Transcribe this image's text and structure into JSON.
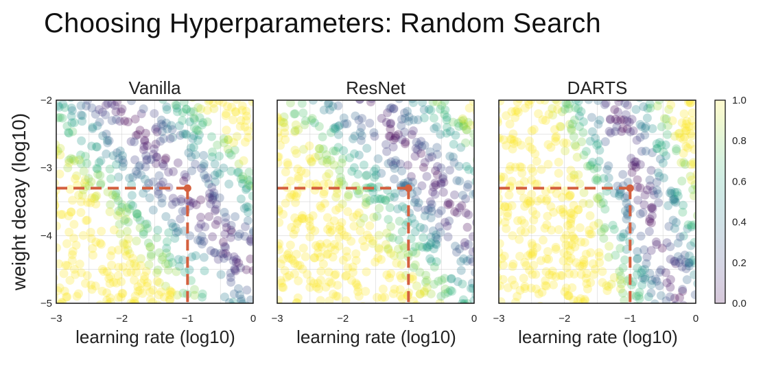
{
  "slide_title": "Choosing Hyperparameters: Random Search",
  "chart_data": [
    {
      "type": "scatter",
      "title": "Vanilla",
      "xlabel": "learning rate (log10)",
      "ylabel": "weight decay (log10)",
      "xlim": [
        -3,
        0
      ],
      "ylim": [
        -5,
        -2
      ],
      "xticks": [
        "−3",
        "−2",
        "−1",
        "0"
      ],
      "yticks": [
        "−2",
        "−3",
        "−4",
        "−5"
      ],
      "highlight_point": {
        "x": -1,
        "y": -3.3
      },
      "low_error_band": {
        "through": [
          [
            -2,
            -2.5
          ],
          [
            -1,
            -3.3
          ],
          [
            -0.2,
            -4.5
          ]
        ]
      },
      "band": {
        "cx": -1,
        "cy": -3.3,
        "a": 1.2,
        "b": 1.0,
        "scale": 0.6
      },
      "n_points": 650
    },
    {
      "type": "scatter",
      "title": "ResNet",
      "xlabel": "learning rate (log10)",
      "ylabel": "",
      "xlim": [
        -3,
        0
      ],
      "ylim": [
        -5,
        -2
      ],
      "xticks": [
        "−3",
        "−2",
        "−1",
        "0"
      ],
      "yticks": [],
      "highlight_point": {
        "x": -1,
        "y": -3.3
      },
      "low_error_band": {
        "through": [
          [
            -1.5,
            -2
          ],
          [
            -0.6,
            -3.3
          ],
          [
            0,
            -4.5
          ]
        ]
      },
      "band": {
        "cx": -0.6,
        "cy": -3.2,
        "a": 1.2,
        "b": 1.0,
        "scale": 0.6
      },
      "n_points": 650
    },
    {
      "type": "scatter",
      "title": "DARTS",
      "xlabel": "learning rate (log10)",
      "ylabel": "",
      "xlim": [
        -3,
        0
      ],
      "ylim": [
        -5,
        -2
      ],
      "xticks": [
        "−3",
        "−2",
        "−1",
        "0"
      ],
      "yticks": [],
      "highlight_point": {
        "x": -1,
        "y": -3.3
      },
      "low_error_band": {
        "through": [
          [
            -1.4,
            -2
          ],
          [
            -0.8,
            -3.3
          ],
          [
            -0.6,
            -5
          ]
        ]
      },
      "band": {
        "cx": -0.8,
        "cy": -3.3,
        "a": 1.6,
        "b": 0.55,
        "scale": 0.75
      },
      "n_points": 650
    }
  ],
  "colorbar": {
    "ticks": [
      "1.0",
      "0.8",
      "0.6",
      "0.4",
      "0.2",
      "0.0"
    ],
    "range": [
      0,
      1
    ],
    "colormap": "viridis"
  },
  "colors": {
    "highlight": "#d4603f",
    "axis": "#111111"
  }
}
